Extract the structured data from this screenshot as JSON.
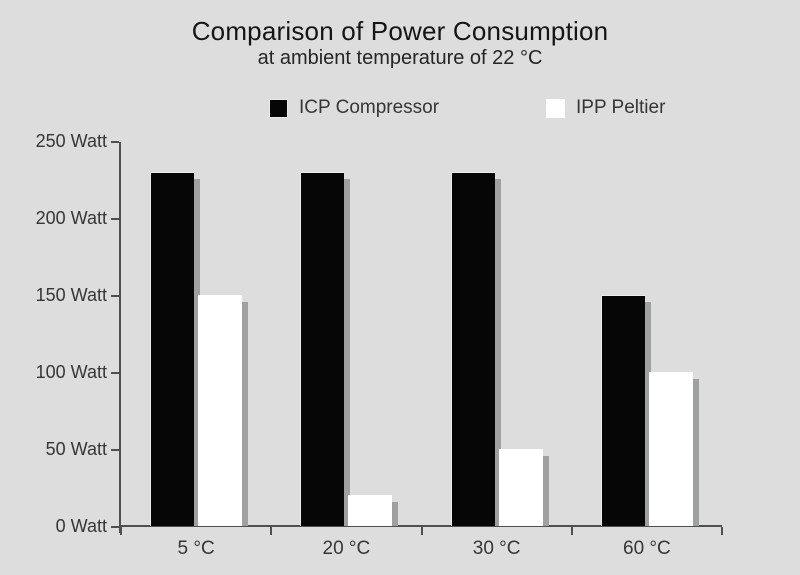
{
  "title": "Comparison of Power Consumption",
  "subtitle": "at ambient temperature of 22 °C",
  "legend": [
    {
      "label": "ICP Compressor",
      "color": "#060606"
    },
    {
      "label": "IPP Peltier",
      "color": "#ffffff"
    }
  ],
  "chart_data": {
    "type": "bar",
    "title": "Comparison of Power Consumption",
    "subtitle": "at ambient temperature of 22 °C",
    "categories": [
      "5 °C",
      "20 °C",
      "30 °C",
      "60 °C"
    ],
    "series": [
      {
        "name": "ICP Compressor",
        "color": "#060606",
        "values": [
          230,
          230,
          230,
          150
        ]
      },
      {
        "name": "IPP Peltier",
        "color": "#ffffff",
        "values": [
          150,
          20,
          50,
          100
        ]
      }
    ],
    "xlabel": "",
    "ylabel": "",
    "ylim": [
      0,
      250
    ],
    "ytick_step": 50,
    "ytick_labels": [
      "0 Watt",
      "50 Watt",
      "100 Watt",
      "150 Watt",
      "200 Watt",
      "250 Watt"
    ],
    "yunit": "Watt",
    "grid": false,
    "legend_position": "top",
    "colors": {
      "background": "#dcdddc",
      "axis": "#4e504f",
      "bar_shadow": "#9fa1a0",
      "text": "#353737"
    }
  }
}
